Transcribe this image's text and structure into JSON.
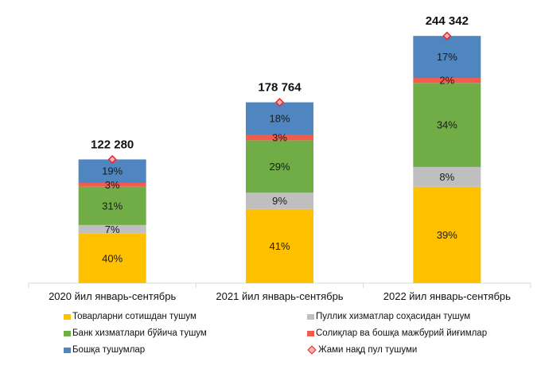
{
  "chart_data": {
    "type": "bar",
    "stacked": true,
    "title": "",
    "xlabel": "",
    "ylabel": "",
    "categories": [
      "2020 йил январь-сентябрь",
      "2021 йил январь-сентябрь",
      "2022 йил январь-сентябрь"
    ],
    "series": [
      {
        "name": "Товарларни сотишдан тушум",
        "color": "#ffc000",
        "values": [
          40,
          41,
          39
        ],
        "labels": [
          "40%",
          "41%",
          "39%"
        ]
      },
      {
        "name": "Пуллик хизматлар соҳасидан тушум",
        "color": "#bfbfbf",
        "values": [
          7,
          9,
          8
        ],
        "labels": [
          "7%",
          "9%",
          "8%"
        ]
      },
      {
        "name": "Банк хизматлари бўйича тушум",
        "color": "#70ad47",
        "values": [
          31,
          29,
          34
        ],
        "labels": [
          "31%",
          "29%",
          "34%"
        ]
      },
      {
        "name": "Солиқлар ва бошқа мажбурий йиғимлар",
        "color": "#f55a4e",
        "values": [
          3,
          3,
          2
        ],
        "labels": [
          "3%",
          "3%",
          "2%"
        ]
      },
      {
        "name": "Бошқа тушумлар",
        "color": "#4f86c0",
        "values": [
          19,
          18,
          17
        ],
        "labels": [
          "19%",
          "18%",
          "17%"
        ]
      }
    ],
    "totals": {
      "name": "Жами нақд пул тушуми",
      "marker": "diamond",
      "color": "#e8262a",
      "values": [
        122280,
        178764,
        244342
      ],
      "labels": [
        "122 280",
        "178 764",
        "244 342"
      ]
    },
    "grid": false,
    "legend_position": "bottom"
  },
  "legend": {
    "items": [
      {
        "label": "Товарларни сотишдан тушум",
        "color": "#ffc000",
        "kind": "square"
      },
      {
        "label": "Пуллик хизматлар соҳасидан тушум",
        "color": "#bfbfbf",
        "kind": "square"
      },
      {
        "label": "Банк хизматлари бўйича тушум",
        "color": "#70ad47",
        "kind": "square"
      },
      {
        "label": "Солиқлар ва бошқа мажбурий йиғимлар",
        "color": "#f55a4e",
        "kind": "square"
      },
      {
        "label": "Бошқа тушумлар",
        "color": "#4f86c0",
        "kind": "square"
      },
      {
        "label": "Жами нақд пул тушуми",
        "color": "#e8262a",
        "kind": "diamond"
      }
    ]
  }
}
